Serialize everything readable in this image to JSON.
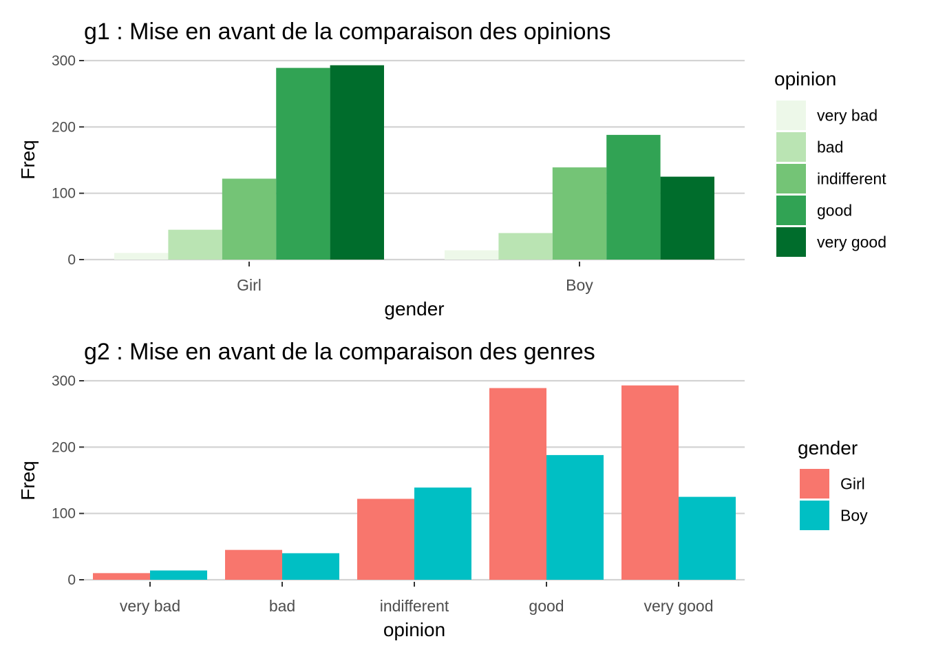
{
  "chart_data": [
    {
      "type": "bar",
      "title": "g1 : Mise en avant de la comparaison des opinions",
      "xlabel": "gender",
      "ylabel": "Freq",
      "ylim": [
        0,
        310
      ],
      "yticks": [
        0,
        100,
        200,
        300
      ],
      "categories": [
        "Girl",
        "Boy"
      ],
      "legend": {
        "title": "opinion",
        "position": "right"
      },
      "grid": "horizontal",
      "series": [
        {
          "name": "very bad",
          "color": "#edf8e9",
          "values": [
            10,
            14
          ]
        },
        {
          "name": "bad",
          "color": "#bae4b3",
          "values": [
            45,
            40
          ]
        },
        {
          "name": "indifferent",
          "color": "#74c476",
          "values": [
            122,
            139
          ]
        },
        {
          "name": "good",
          "color": "#31a354",
          "values": [
            289,
            188
          ]
        },
        {
          "name": "very good",
          "color": "#006d2c",
          "values": [
            293,
            125
          ]
        }
      ]
    },
    {
      "type": "bar",
      "title": "g2 : Mise en avant de la comparaison des genres",
      "xlabel": "opinion",
      "ylabel": "Freq",
      "ylim": [
        0,
        310
      ],
      "yticks": [
        0,
        100,
        200,
        300
      ],
      "categories": [
        "very bad",
        "bad",
        "indifferent",
        "good",
        "very good"
      ],
      "legend": {
        "title": "gender",
        "position": "right"
      },
      "grid": "horizontal",
      "series": [
        {
          "name": "Girl",
          "color": "#f8766d",
          "values": [
            10,
            45,
            122,
            289,
            293
          ]
        },
        {
          "name": "Boy",
          "color": "#00bfc4",
          "values": [
            14,
            40,
            139,
            188,
            125
          ]
        }
      ]
    }
  ]
}
